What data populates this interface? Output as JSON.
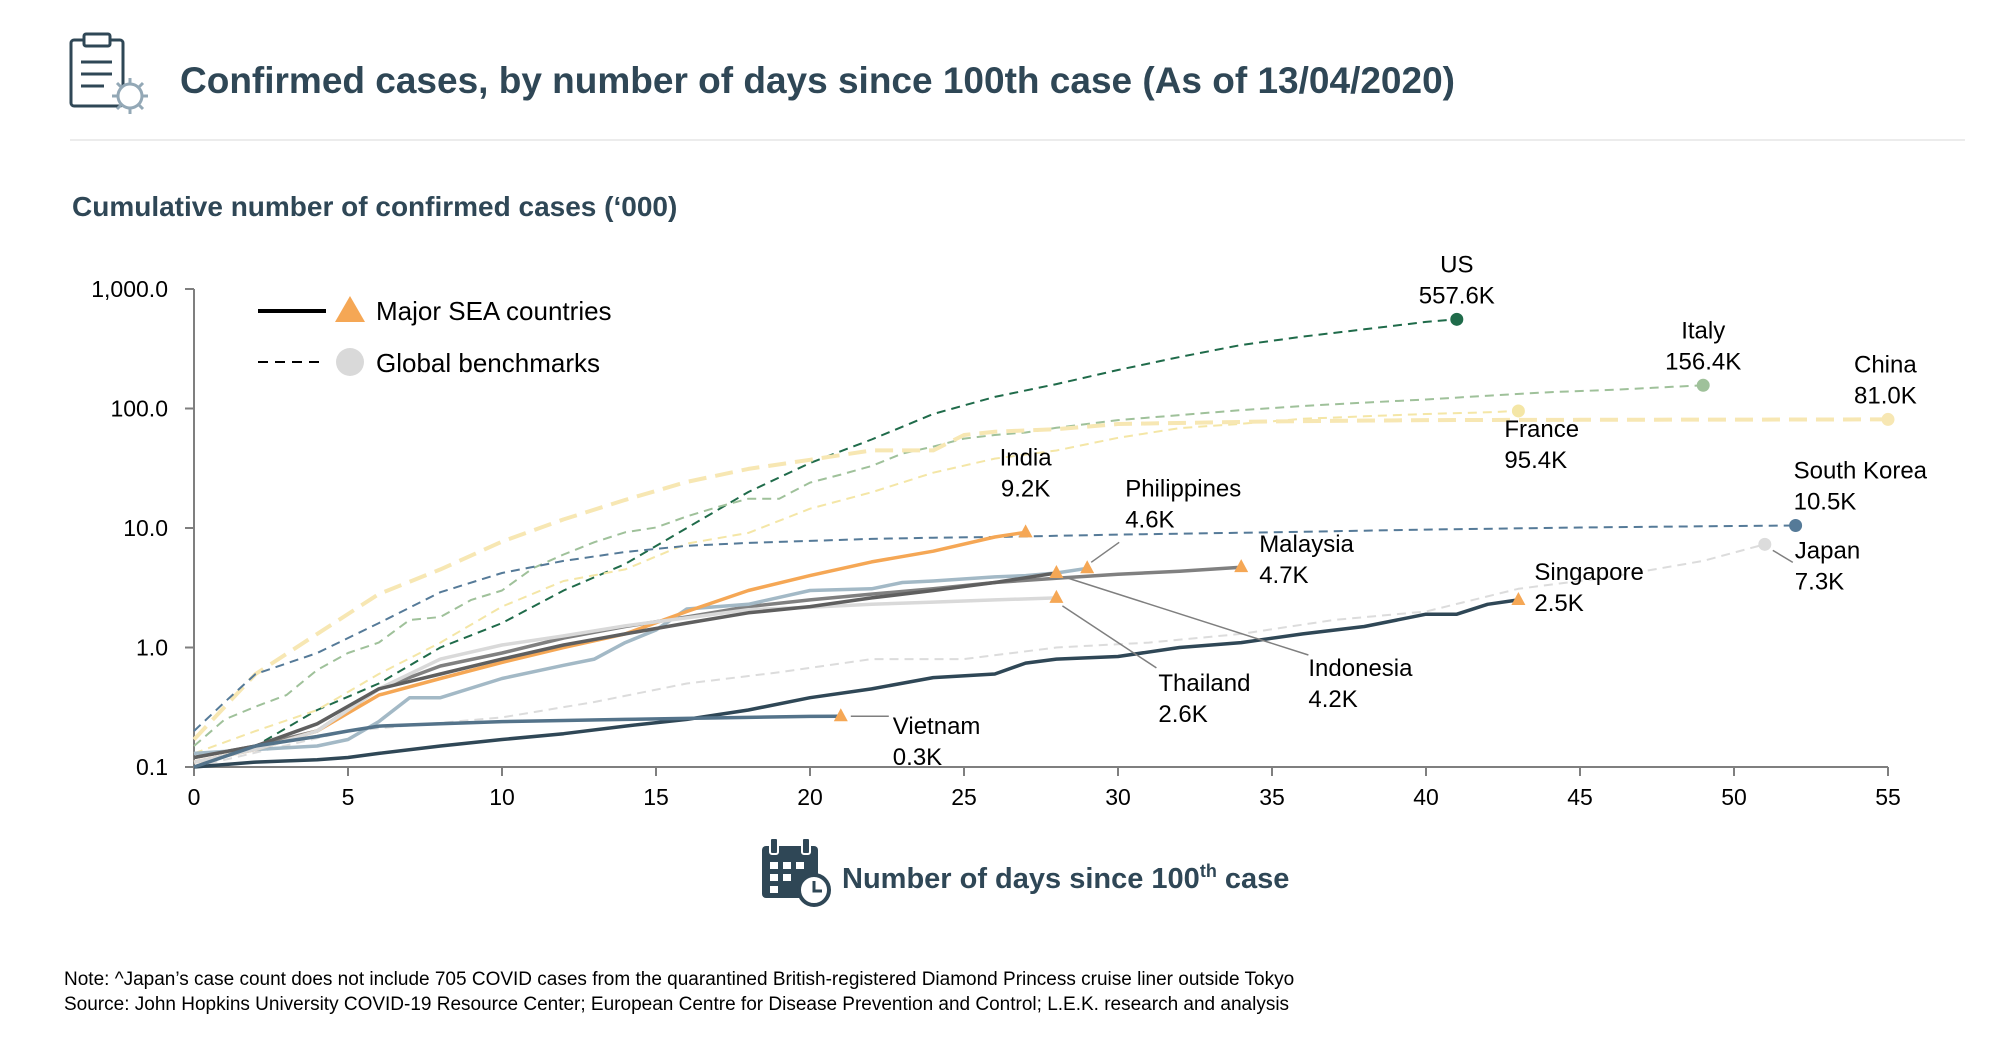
{
  "header": {
    "title": "Confirmed cases, by number of days since 100th case (As of 13/04/2020)",
    "header_icon": "clipboard-virus-icon"
  },
  "chart_data": {
    "type": "line",
    "subtitle": "Cumulative number of confirmed cases (‘000)",
    "xlabel": "Number of days since 100",
    "xlabel_sup": "th",
    "xlabel_end": " case",
    "xlabel_icon": "calendar-clock-icon",
    "xlim": [
      0,
      55
    ],
    "x_ticks": [
      0,
      5,
      10,
      15,
      20,
      25,
      30,
      35,
      40,
      45,
      50,
      55
    ],
    "ylim": [
      0.1,
      1000
    ],
    "yscale": "log",
    "y_ticks": [
      0.1,
      1,
      10,
      100,
      1000
    ],
    "y_tick_labels": [
      "0.1",
      "1.0",
      "10.0",
      "100.0",
      "1,000.0"
    ],
    "grid": false,
    "legend": {
      "placement": "top-left",
      "entries": [
        {
          "label": "Major SEA countries",
          "line": "solid",
          "marker": "triangle",
          "color": "#f5a755"
        },
        {
          "label": "Global benchmarks",
          "line": "dashed",
          "marker": "circle",
          "color": "#d9d9d9"
        }
      ]
    },
    "series": [
      {
        "name": "US",
        "group": "benchmark",
        "color": "#1f6b4a",
        "marker": "circle",
        "label": [
          "US",
          "557.6K"
        ],
        "x": [
          0,
          2,
          4,
          6,
          8,
          10,
          12,
          14,
          16,
          18,
          20,
          22,
          24,
          26,
          28,
          30,
          32,
          34,
          36,
          38,
          40,
          41
        ],
        "y": [
          0.1,
          0.15,
          0.3,
          0.5,
          1.0,
          1.6,
          3.0,
          5.0,
          10,
          20,
          35,
          55,
          90,
          125,
          160,
          210,
          270,
          340,
          400,
          460,
          530,
          557.6
        ]
      },
      {
        "name": "Italy",
        "group": "benchmark",
        "color": "#9fc19a",
        "marker": "circle",
        "label": [
          "Italy",
          "156.4K"
        ],
        "x": [
          0,
          1,
          2,
          3,
          4,
          5,
          6,
          7,
          8,
          9,
          10,
          11,
          12,
          13,
          14,
          15,
          16,
          17,
          18,
          19,
          20,
          21,
          22,
          23,
          24,
          25,
          26,
          27,
          28,
          30,
          32,
          34,
          36,
          38,
          40,
          42,
          44,
          46,
          48,
          49
        ],
        "y": [
          0.15,
          0.25,
          0.32,
          0.4,
          0.65,
          0.9,
          1.1,
          1.7,
          1.8,
          2.5,
          3.0,
          4.6,
          6.0,
          7.6,
          9.2,
          10.1,
          12.5,
          15,
          17.6,
          17.6,
          24,
          28,
          33,
          42,
          48,
          56,
          60,
          63,
          69,
          80,
          88,
          97,
          105,
          112,
          119,
          128,
          137,
          143,
          152,
          156.4
        ]
      },
      {
        "name": "France",
        "group": "benchmark",
        "color": "#f4e6a6",
        "marker": "circle",
        "label": [
          "France",
          "95.4K"
        ],
        "x": [
          0,
          2,
          4,
          6,
          8,
          10,
          12,
          14,
          16,
          18,
          20,
          22,
          24,
          26,
          28,
          30,
          32,
          34,
          36,
          38,
          40,
          42,
          43
        ],
        "y": [
          0.13,
          0.2,
          0.3,
          0.6,
          1.1,
          2.2,
          3.6,
          4.5,
          7.4,
          9.1,
          14.5,
          19.9,
          29,
          38.1,
          44.5,
          56.9,
          68.6,
          74.4,
          82,
          86,
          90,
          93,
          95.4
        ]
      },
      {
        "name": "China",
        "group": "benchmark",
        "color": "#f7e7b3",
        "marker": "circle",
        "dash": "18 9",
        "label": [
          "China",
          "81.0K"
        ],
        "x": [
          0,
          2,
          4,
          6,
          8,
          10,
          12,
          14,
          16,
          18,
          20,
          22,
          24,
          25,
          26,
          28,
          30,
          35,
          40,
          45,
          50,
          55
        ],
        "y": [
          0.17,
          0.6,
          1.3,
          2.8,
          4.5,
          7.7,
          11.8,
          17.2,
          24.3,
          31.2,
          37.2,
          44.6,
          44.6,
          60,
          63.9,
          67.1,
          74.2,
          78,
          80,
          80.5,
          80.8,
          81.0
        ]
      },
      {
        "name": "South Korea",
        "group": "benchmark",
        "color": "#557a98",
        "marker": "circle",
        "label": [
          "South Korea",
          "10.5K"
        ],
        "x": [
          0,
          1,
          2,
          4,
          6,
          8,
          10,
          12,
          14,
          16,
          18,
          20,
          22,
          24,
          26,
          28,
          30,
          35,
          40,
          45,
          50,
          52
        ],
        "y": [
          0.2,
          0.35,
          0.6,
          0.9,
          1.6,
          2.9,
          4.2,
          5.3,
          6.3,
          7.1,
          7.5,
          7.8,
          8.1,
          8.3,
          8.4,
          8.6,
          8.8,
          9.2,
          9.7,
          10.1,
          10.4,
          10.5
        ]
      },
      {
        "name": "Japan",
        "group": "benchmark",
        "color": "#dcdcdc",
        "marker": "circle",
        "label": [
          "Japan",
          "7.3K"
        ],
        "x": [
          0,
          5,
          10,
          13,
          16,
          19,
          22,
          25,
          28,
          31,
          34,
          37,
          40,
          43,
          46,
          49,
          51
        ],
        "y": [
          0.1,
          0.2,
          0.26,
          0.35,
          0.5,
          0.62,
          0.8,
          0.8,
          1.0,
          1.1,
          1.3,
          1.7,
          2.0,
          3.1,
          3.9,
          5.3,
          7.3
        ]
      },
      {
        "name": "Malaysia",
        "group": "sea",
        "color": "#808080",
        "marker": "triangle",
        "label": [
          "Malaysia",
          "4.7K"
        ],
        "x": [
          0,
          2,
          4,
          6,
          8,
          10,
          12,
          14,
          16,
          18,
          20,
          22,
          24,
          26,
          28,
          30,
          32,
          34
        ],
        "y": [
          0.12,
          0.15,
          0.2,
          0.45,
          0.7,
          0.9,
          1.2,
          1.5,
          1.8,
          2.2,
          2.5,
          2.8,
          3.1,
          3.5,
          3.8,
          4.1,
          4.35,
          4.7
        ]
      },
      {
        "name": "Philippines",
        "group": "sea",
        "color": "#a3b9c6",
        "marker": "triangle",
        "label": [
          "Philippines",
          "4.6K"
        ],
        "x": [
          0,
          2,
          4,
          5,
          6,
          7,
          8,
          10,
          12,
          13,
          14,
          15,
          16,
          18,
          20,
          22,
          23,
          24,
          26,
          27,
          28,
          29
        ],
        "y": [
          0.13,
          0.14,
          0.15,
          0.17,
          0.24,
          0.38,
          0.38,
          0.55,
          0.71,
          0.8,
          1.1,
          1.4,
          2.1,
          2.3,
          3.0,
          3.1,
          3.5,
          3.6,
          3.9,
          4.0,
          4.2,
          4.6
        ]
      },
      {
        "name": "India",
        "group": "sea",
        "color": "#f5a755",
        "marker": "triangle",
        "label": [
          "India",
          "9.2K"
        ],
        "x": [
          0,
          2,
          4,
          6,
          8,
          10,
          12,
          14,
          16,
          18,
          20,
          22,
          24,
          26,
          27
        ],
        "y": [
          0.11,
          0.14,
          0.2,
          0.4,
          0.55,
          0.75,
          1.0,
          1.3,
          2.0,
          3.0,
          4.0,
          5.2,
          6.4,
          8.4,
          9.2
        ]
      },
      {
        "name": "Thailand",
        "group": "sea",
        "color": "#d9d9d9",
        "marker": "triangle",
        "label": [
          "Thailand",
          "2.6K"
        ],
        "x": [
          0,
          2,
          4,
          6,
          8,
          10,
          12,
          14,
          16,
          18,
          20,
          22,
          24,
          26,
          28
        ],
        "y": [
          0.11,
          0.14,
          0.2,
          0.45,
          0.8,
          1.05,
          1.25,
          1.52,
          1.77,
          2.07,
          2.17,
          2.3,
          2.4,
          2.5,
          2.6
        ]
      },
      {
        "name": "Indonesia",
        "group": "sea",
        "color": "#5f5f5f",
        "marker": "triangle",
        "label": [
          "Indonesia",
          "4.2K"
        ],
        "x": [
          0,
          2,
          4,
          6,
          8,
          10,
          12,
          14,
          16,
          18,
          20,
          22,
          24,
          26,
          28
        ],
        "y": [
          0.12,
          0.15,
          0.23,
          0.45,
          0.6,
          0.8,
          1.05,
          1.3,
          1.6,
          1.95,
          2.2,
          2.6,
          3.0,
          3.5,
          4.2
        ]
      },
      {
        "name": "Singapore",
        "group": "sea",
        "color": "#2f4756",
        "marker": "triangle",
        "label": [
          "Singapore",
          "2.5K"
        ],
        "x": [
          0,
          2,
          4,
          5,
          6,
          8,
          10,
          12,
          14,
          16,
          18,
          20,
          22,
          24,
          26,
          27,
          28,
          30,
          32,
          34,
          36,
          38,
          40,
          41,
          42,
          43
        ],
        "y": [
          0.1,
          0.11,
          0.115,
          0.12,
          0.13,
          0.15,
          0.17,
          0.19,
          0.22,
          0.25,
          0.3,
          0.38,
          0.45,
          0.56,
          0.6,
          0.74,
          0.8,
          0.84,
          1.0,
          1.1,
          1.3,
          1.5,
          1.9,
          1.9,
          2.3,
          2.5
        ]
      },
      {
        "name": "Vietnam",
        "group": "sea",
        "color": "#54738a",
        "marker": "triangle",
        "label": [
          "Vietnam",
          "0.3K"
        ],
        "x": [
          0,
          2,
          4,
          5,
          6,
          8,
          10,
          12,
          14,
          16,
          18,
          20,
          21
        ],
        "y": [
          0.1,
          0.15,
          0.18,
          0.2,
          0.22,
          0.23,
          0.24,
          0.245,
          0.25,
          0.255,
          0.26,
          0.265,
          0.266
        ]
      }
    ]
  },
  "footer": {
    "note": "Note: ^Japan’s case count does not include 705 COVID cases from the quarantined British-registered Diamond Princess cruise liner outside Tokyo",
    "source": "Source: John Hopkins University COVID-19 Resource Center; European Centre for Disease Prevention and Control; L.E.K. research and analysis"
  }
}
